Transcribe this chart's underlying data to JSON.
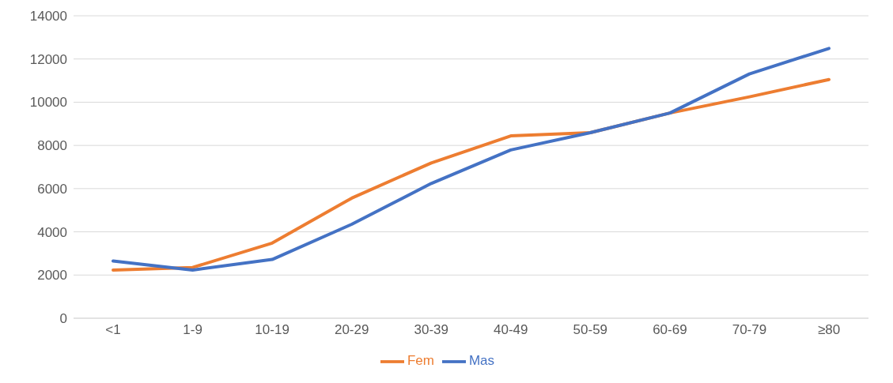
{
  "chart_data": {
    "type": "line",
    "categories": [
      "<1",
      "1-9",
      "10-19",
      "20-29",
      "30-39",
      "40-49",
      "50-59",
      "60-69",
      "70-79",
      "≥80"
    ],
    "series": [
      {
        "name": "Fem",
        "color": "#ed7d31",
        "values": [
          2230,
          2350,
          3480,
          5560,
          7190,
          8440,
          8590,
          9500,
          10250,
          11050
        ]
      },
      {
        "name": "Mas",
        "color": "#4472c4",
        "values": [
          2650,
          2230,
          2720,
          4350,
          6240,
          7790,
          8590,
          9500,
          11310,
          12490
        ]
      }
    ],
    "ylim": [
      0,
      14000
    ],
    "yticks": [
      0,
      2000,
      4000,
      6000,
      8000,
      10000,
      12000,
      14000
    ],
    "grid": "y",
    "legend": "bottom",
    "marker": "none",
    "line_style": "solid"
  }
}
